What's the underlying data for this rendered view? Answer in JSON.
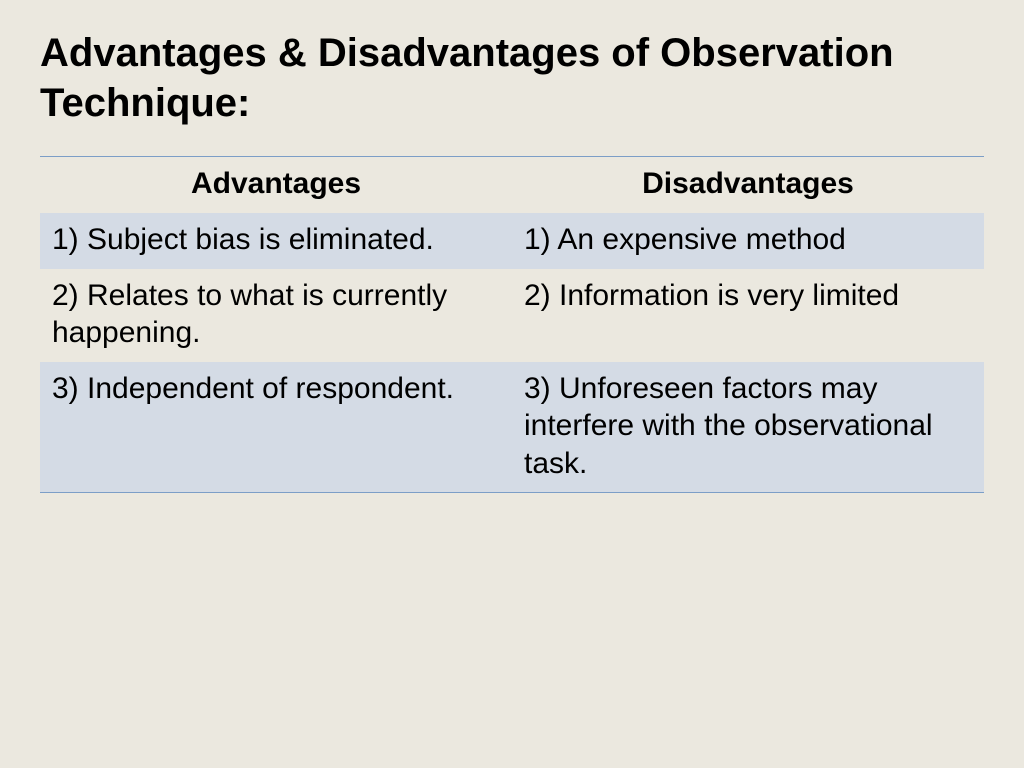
{
  "slide": {
    "title": "Advantages & Disadvantages of Observation Technique:",
    "background_color": "#ebe8df",
    "title_fontsize": 40,
    "title_color": "#000000"
  },
  "table": {
    "type": "table",
    "columns": [
      "Advantages",
      "Disadvantages"
    ],
    "header_fontsize": 30,
    "header_weight": "bold",
    "cell_fontsize": 30,
    "border_color": "#7c9ec7",
    "row_colors": {
      "odd": "#d4dbe5",
      "even": "#ebe8df"
    },
    "rows": [
      {
        "advantage": "1) Subject bias is eliminated.",
        "disadvantage": "1) An expensive method"
      },
      {
        "advantage": "2) Relates to what is currently happening.",
        "disadvantage": "2) Information is very limited"
      },
      {
        "advantage": "3) Independent of respondent.",
        "disadvantage": "3) Unforeseen factors may interfere with the observational task."
      }
    ]
  }
}
